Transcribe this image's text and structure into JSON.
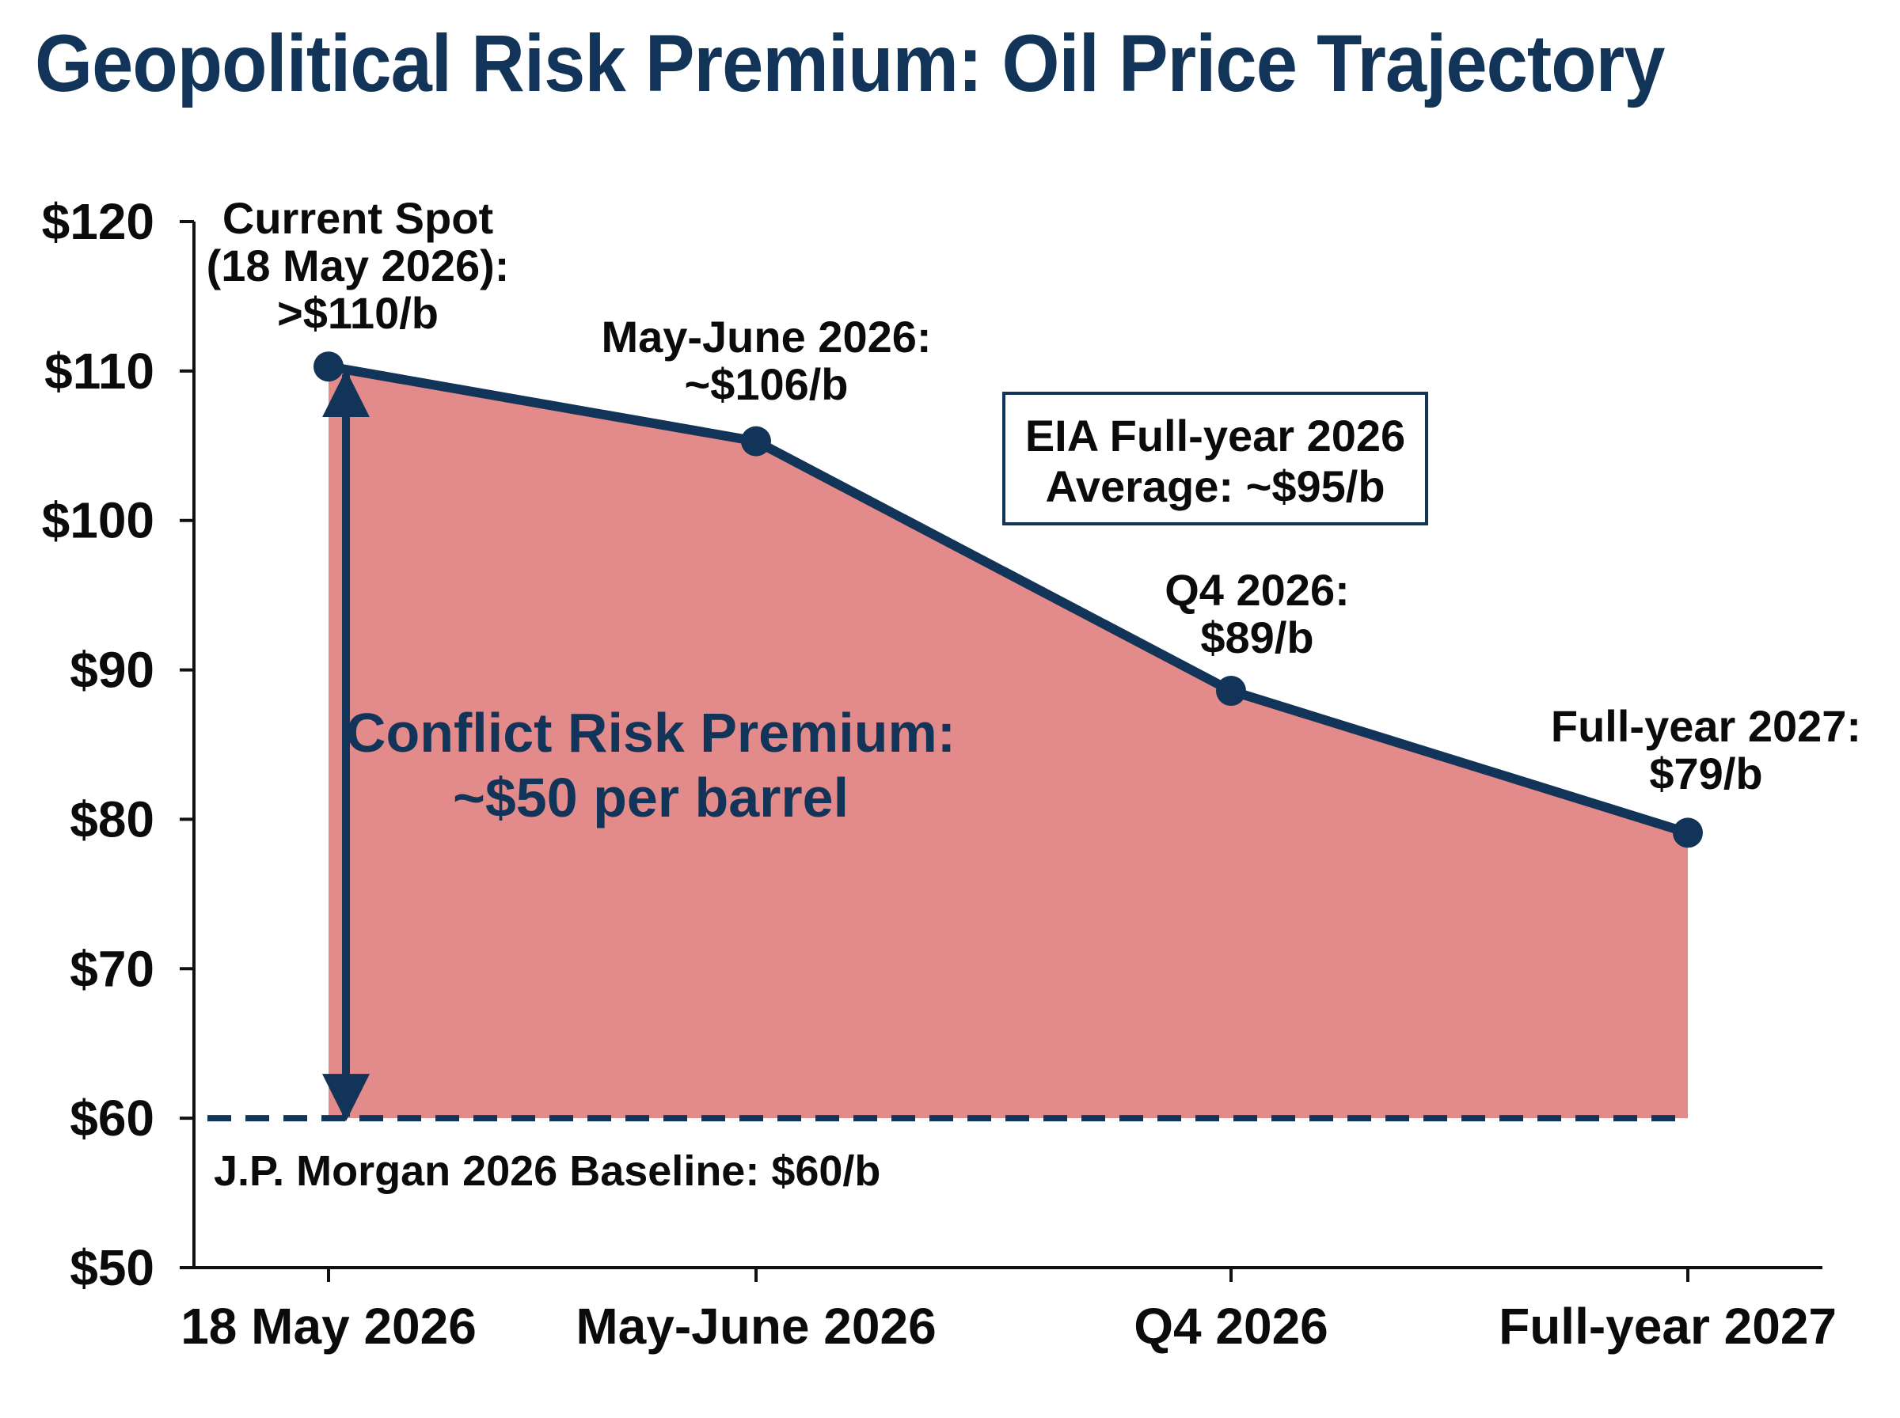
{
  "chart_data": {
    "type": "area",
    "title": "Geopolitical Risk Premium: Oil Price Trajectory",
    "categories": [
      "18 May 2026",
      "May-June 2026",
      "Q4 2026",
      "Full-year 2027"
    ],
    "values": [
      110.3,
      105.3,
      88.6,
      79.1
    ],
    "ylim": [
      50,
      120
    ],
    "yticks": [
      50,
      60,
      70,
      80,
      90,
      100,
      110,
      120
    ],
    "ytick_labels": [
      "$50",
      "$60",
      "$70",
      "$80",
      "$90",
      "$100",
      "$110",
      "$120"
    ],
    "grid": false,
    "colors": {
      "fill": "#e38a8a",
      "line": "#123458",
      "text": "#0b0b0b",
      "title": "#123458"
    },
    "point_labels": [
      [
        "Current Spot",
        "(18 May 2026):",
        ">$110/b"
      ],
      [
        "May-June 2026:",
        "~$106/b"
      ],
      [
        "Q4 2026:",
        "$89/b"
      ],
      [
        "Full-year 2027:",
        "$79/b"
      ]
    ],
    "baseline": {
      "value": 60,
      "label": "J.P. Morgan 2026 Baseline: $60/b"
    },
    "premium": {
      "from": 60,
      "to": 110.3,
      "lines": [
        "Conflict Risk Premium:",
        "~$50 per barrel"
      ]
    },
    "callout": {
      "lines": [
        "EIA Full-year 2026",
        "Average: ~$95/b"
      ]
    }
  }
}
